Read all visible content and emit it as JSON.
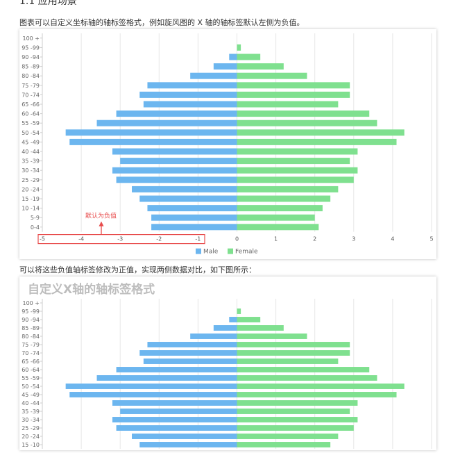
{
  "doc": {
    "heading": "1.1 应用场景",
    "para1": "图表可以自定义坐标轴的轴标签格式，例如旋风图的 X 轴的轴标签默认左侧为负值。",
    "para2": "可以将这些负值轴标签修改为正值，实现两侧数据对比，如下图所示：",
    "annotation": "默认为负值",
    "chart2_title": "自定义X轴的轴标签格式"
  },
  "colors": {
    "male": "#6cb6ef",
    "female": "#7fe08f",
    "annotation": "#e84c4c"
  },
  "chart_data": [
    {
      "type": "bar",
      "orientation": "horizontal",
      "categories": [
        "100 +",
        "95 -99",
        "90 -94",
        "85 -89",
        "80 -84",
        "75 -79",
        "70 -74",
        "65 -66",
        "60 -64",
        "55 -59",
        "50 -54",
        "45 -49",
        "40 -44",
        "35 -39",
        "30 -34",
        "25 -29",
        "20 -24",
        "15 -19",
        "10 -14",
        "5-9",
        "0-4"
      ],
      "series": [
        {
          "name": "Male",
          "values": [
            0,
            0,
            -0.2,
            -0.6,
            -1.2,
            -2.3,
            -2.5,
            -2.4,
            -3.1,
            -3.6,
            -4.4,
            -4.3,
            -3.2,
            -3.0,
            -3.2,
            -3.1,
            -2.7,
            -2.5,
            -2.3,
            -2.2,
            -2.2
          ]
        },
        {
          "name": "Female",
          "values": [
            0,
            0.1,
            0.6,
            1.2,
            1.8,
            2.9,
            2.9,
            2.6,
            3.4,
            3.6,
            4.3,
            4.1,
            3.1,
            2.9,
            3.1,
            3.0,
            2.6,
            2.4,
            2.2,
            2.0,
            2.1
          ]
        }
      ],
      "xlim": [
        -5,
        5
      ],
      "xticks": [
        "-5",
        "-4",
        "-3",
        "-2",
        "-1",
        "0",
        "1",
        "2",
        "3",
        "4",
        "5"
      ],
      "legend": "bottom"
    },
    {
      "type": "bar",
      "orientation": "horizontal",
      "title": "自定义X轴的轴标签格式",
      "categories": [
        "100 +",
        "95 -99",
        "90 -94",
        "85 -89",
        "80 -84",
        "75 -79",
        "70 -74",
        "65 -66",
        "60 -64",
        "55 -59",
        "50 -54",
        "45 -49",
        "40 -44",
        "35 -39",
        "30 -34",
        "25 -29",
        "20 -24",
        "15 -10"
      ],
      "series": [
        {
          "name": "Male",
          "values": [
            0,
            0,
            -0.2,
            -0.6,
            -1.2,
            -2.3,
            -2.5,
            -2.4,
            -3.1,
            -3.6,
            -4.4,
            -4.3,
            -3.2,
            -3.0,
            -3.2,
            -3.1,
            -2.7,
            -2.5
          ]
        },
        {
          "name": "Female",
          "values": [
            0,
            0.1,
            0.6,
            1.2,
            1.8,
            2.9,
            2.9,
            2.6,
            3.4,
            3.6,
            4.3,
            4.1,
            3.1,
            2.9,
            3.1,
            3.0,
            2.6,
            2.4
          ]
        }
      ],
      "xlim": [
        -5,
        5
      ],
      "grid": true
    }
  ]
}
